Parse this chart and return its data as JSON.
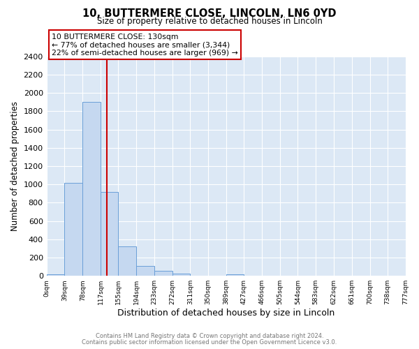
{
  "title": "10, BUTTERMERE CLOSE, LINCOLN, LN6 0YD",
  "subtitle": "Size of property relative to detached houses in Lincoln",
  "xlabel": "Distribution of detached houses by size in Lincoln",
  "ylabel": "Number of detached properties",
  "bar_color": "#c5d8f0",
  "bar_edge_color": "#6a9fd8",
  "plot_bg_color": "#dce8f5",
  "fig_bg_color": "#ffffff",
  "grid_color": "#ffffff",
  "bin_edges": [
    0,
    39,
    78,
    117,
    155,
    194,
    233,
    272,
    311,
    350,
    389,
    427,
    466,
    505,
    544,
    583,
    622,
    661,
    700,
    738,
    777
  ],
  "bin_labels": [
    "0sqm",
    "39sqm",
    "78sqm",
    "117sqm",
    "155sqm",
    "194sqm",
    "233sqm",
    "272sqm",
    "311sqm",
    "350sqm",
    "389sqm",
    "427sqm",
    "466sqm",
    "505sqm",
    "544sqm",
    "583sqm",
    "622sqm",
    "661sqm",
    "700sqm",
    "738sqm",
    "777sqm"
  ],
  "bar_heights": [
    18,
    1020,
    1900,
    920,
    320,
    108,
    52,
    25,
    0,
    0,
    18,
    0,
    0,
    0,
    0,
    0,
    0,
    0,
    0,
    0
  ],
  "ylim": [
    0,
    2400
  ],
  "yticks": [
    0,
    200,
    400,
    600,
    800,
    1000,
    1200,
    1400,
    1600,
    1800,
    2000,
    2200,
    2400
  ],
  "property_line_x": 130,
  "property_line_color": "#cc0000",
  "annotation_title": "10 BUTTERMERE CLOSE: 130sqm",
  "annotation_line1": "← 77% of detached houses are smaller (3,344)",
  "annotation_line2": "22% of semi-detached houses are larger (969) →",
  "annotation_box_color": "#ffffff",
  "annotation_border_color": "#cc0000",
  "footer_line1": "Contains HM Land Registry data © Crown copyright and database right 2024.",
  "footer_line2": "Contains public sector information licensed under the Open Government Licence v3.0."
}
